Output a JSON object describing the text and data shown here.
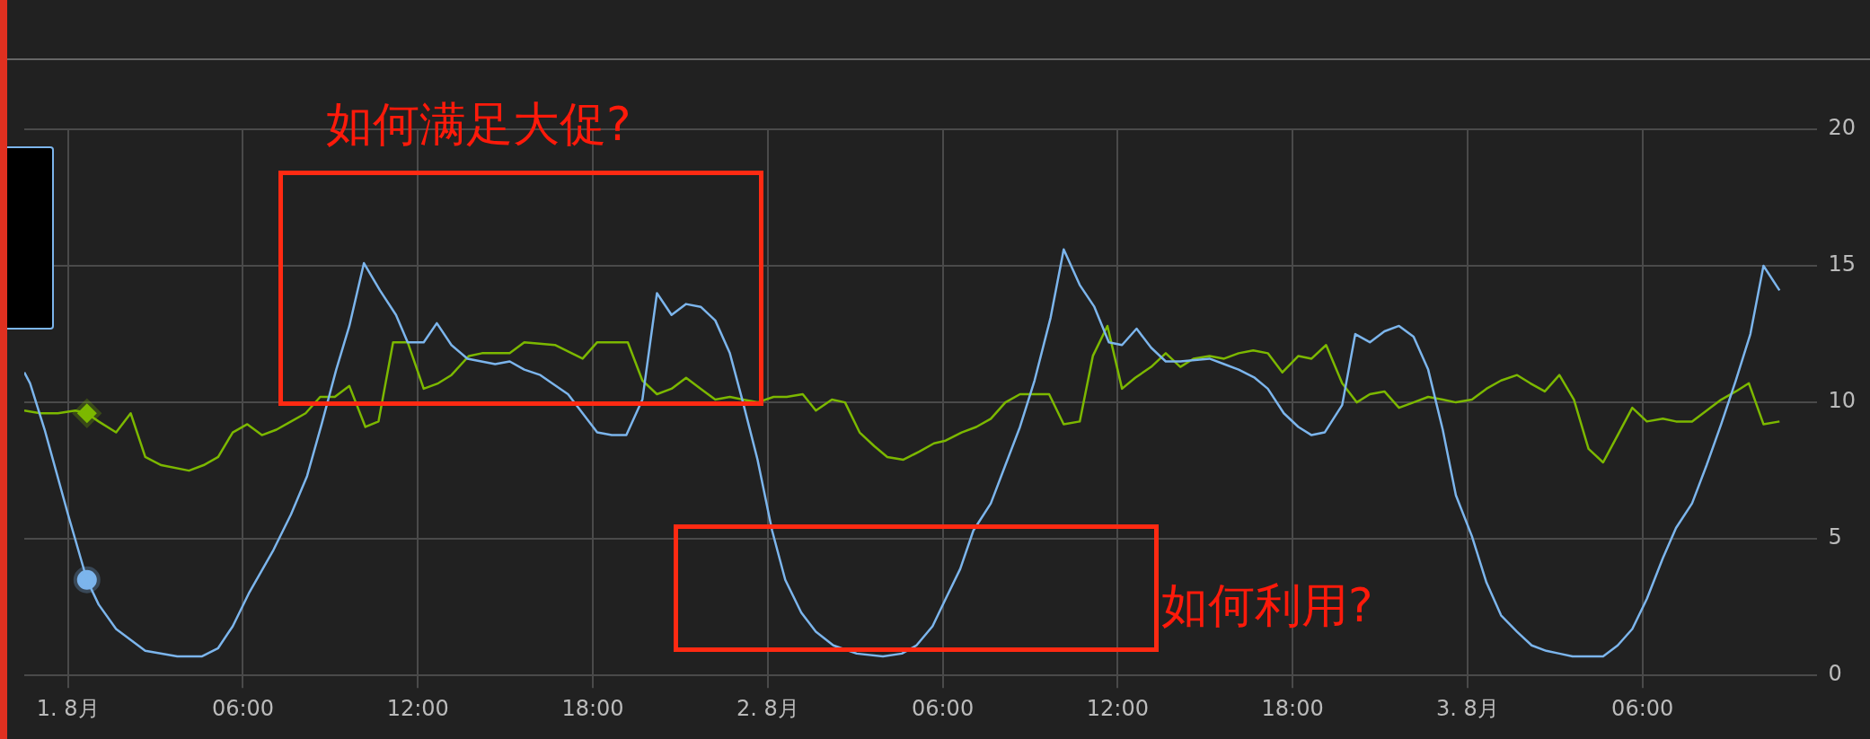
{
  "chart_data": {
    "type": "line",
    "annotations": [
      "如何满足大促?",
      "如何利用?"
    ],
    "xlim": [
      "--07-31T22:30",
      "--08-03T12:00"
    ],
    "xticks": [
      {
        "value": "--08-01",
        "label": "1. 8月"
      },
      {
        "value": "--08-01T06:00",
        "label": "06:00"
      },
      {
        "value": "--08-01T12:00",
        "label": "12:00"
      },
      {
        "value": "--08-01T18:00",
        "label": "18:00"
      },
      {
        "value": "--08-02",
        "label": "2. 8月"
      },
      {
        "value": "--08-02T06:00",
        "label": "06:00"
      },
      {
        "value": "--08-02T12:00",
        "label": "12:00"
      },
      {
        "value": "--08-02T18:00",
        "label": "18:00"
      },
      {
        "value": "--08-03",
        "label": "3. 8月"
      },
      {
        "value": "--08-03T06:00",
        "label": "06:00"
      }
    ],
    "ylim": [
      0,
      20
    ],
    "yticks": [
      0,
      5,
      10,
      15,
      20
    ],
    "grid": true,
    "legend": false,
    "marker": "none",
    "series": [
      {
        "color": "#7cb5ec",
        "x": [
          "--07-31T22:30",
          "--07-31T22:42",
          "--07-31T23:12",
          "--08-01T00:00",
          "--08-01T00:39",
          "--08-01T01:03",
          "--08-01T01:39",
          "--08-01T02:39",
          "--08-01T03:45",
          "--08-01T04:36",
          "--08-01T05:09",
          "--08-01T05:39",
          "--08-01T06:12",
          "--08-01T07:03",
          "--08-01T07:39",
          "--08-01T08:12",
          "--08-01T08:42",
          "--08-01T09:12",
          "--08-01T09:39",
          "--08-01T10:09",
          "--08-01T10:42",
          "--08-01T11:15",
          "--08-01T11:39",
          "--08-01T12:12",
          "--08-01T12:39",
          "--08-01T13:09",
          "--08-01T13:42",
          "--08-01T14:39",
          "--08-01T15:09",
          "--08-01T15:39",
          "--08-01T16:12",
          "--08-01T16:36",
          "--08-01T17:09",
          "--08-01T17:39",
          "--08-01T18:09",
          "--08-01T18:39",
          "--08-01T19:09",
          "--08-01T19:42",
          "--08-01T20:12",
          "--08-01T20:42",
          "--08-01T21:12",
          "--08-01T21:42",
          "--08-01T22:12",
          "--08-01T22:42",
          "--08-01T23:09",
          "--08-01T23:39",
          "--08-02T00:09",
          "--08-02T00:36",
          "--08-02T01:09",
          "--08-02T01:39",
          "--08-02T02:15",
          "--08-02T03:03",
          "--08-02T03:57",
          "--08-02T04:36",
          "--08-02T05:06",
          "--08-02T05:39",
          "--08-02T06:06",
          "--08-02T06:36",
          "--08-02T07:03",
          "--08-02T07:39",
          "--08-02T08:09",
          "--08-02T08:39",
          "--08-02T09:09",
          "--08-02T09:42",
          "--08-02T10:09",
          "--08-02T10:42",
          "--08-02T11:12",
          "--08-02T11:42",
          "--08-02T12:09",
          "--08-02T12:39",
          "--08-02T13:09",
          "--08-02T13:39",
          "--08-02T14:09",
          "--08-02T15:09",
          "--08-02T15:39",
          "--08-02T16:09",
          "--08-02T16:42",
          "--08-02T17:09",
          "--08-02T17:42",
          "--08-02T18:12",
          "--08-02T18:39",
          "--08-02T19:06",
          "--08-02T19:42",
          "--08-02T20:09",
          "--08-02T20:39",
          "--08-02T21:09",
          "--08-02T21:39",
          "--08-02T22:09",
          "--08-02T22:39",
          "--08-02T23:09",
          "--08-02T23:36",
          "--08-03T00:09",
          "--08-03T00:39",
          "--08-03T01:09",
          "--08-03T01:42",
          "--08-03T02:12",
          "--08-03T02:42",
          "--08-03T03:09",
          "--08-03T03:36",
          "--08-03T04:09",
          "--08-03T04:39",
          "--08-03T05:09",
          "--08-03T05:39",
          "--08-03T06:09",
          "--08-03T06:42",
          "--08-03T07:09",
          "--08-03T07:42",
          "--08-03T08:12",
          "--08-03T08:42",
          "--08-03T09:12",
          "--08-03T09:42",
          "--08-03T10:09",
          "--08-03T10:42"
        ],
        "values": [
          11.1,
          10.7,
          9.0,
          5.9,
          3.5,
          2.6,
          1.7,
          0.9,
          0.7,
          0.7,
          1.0,
          1.8,
          3.0,
          4.6,
          5.9,
          7.3,
          9.2,
          11.2,
          12.8,
          15.1,
          14.1,
          13.2,
          12.2,
          12.2,
          12.9,
          12.1,
          11.6,
          11.4,
          11.5,
          11.2,
          11.0,
          10.7,
          10.3,
          9.6,
          8.9,
          8.8,
          8.8,
          10.1,
          14.0,
          13.2,
          13.6,
          13.5,
          13.0,
          11.8,
          10.0,
          7.9,
          5.3,
          3.5,
          2.3,
          1.6,
          1.1,
          0.8,
          0.7,
          0.8,
          1.1,
          1.8,
          2.8,
          3.9,
          5.3,
          6.3,
          7.7,
          9.1,
          10.8,
          13.1,
          15.6,
          14.3,
          13.5,
          12.2,
          12.1,
          12.7,
          12.0,
          11.5,
          11.5,
          11.6,
          11.4,
          11.2,
          10.9,
          10.5,
          9.6,
          9.1,
          8.8,
          8.9,
          9.9,
          12.5,
          12.2,
          12.6,
          12.8,
          12.4,
          11.2,
          9.0,
          6.6,
          5.1,
          3.4,
          2.2,
          1.6,
          1.1,
          0.9,
          0.8,
          0.7,
          0.7,
          0.7,
          1.1,
          1.7,
          2.8,
          4.3,
          5.4,
          6.3,
          7.7,
          9.2,
          10.8,
          12.5,
          15.0,
          14.1
        ]
      },
      {
        "color": "#7cb800",
        "x": [
          "--07-31T22:30",
          "--07-31T23:03",
          "--07-31T23:39",
          "--08-01T00:15",
          "--08-01T00:39",
          "--08-01T01:03",
          "--08-01T01:39",
          "--08-01T02:09",
          "--08-01T02:39",
          "--08-01T03:12",
          "--08-01T04:09",
          "--08-01T04:39",
          "--08-01T05:09",
          "--08-01T05:39",
          "--08-01T06:09",
          "--08-01T06:39",
          "--08-01T07:09",
          "--08-01T07:39",
          "--08-01T08:09",
          "--08-01T08:39",
          "--08-01T09:09",
          "--08-01T09:39",
          "--08-01T10:12",
          "--08-01T10:39",
          "--08-01T11:09",
          "--08-01T11:39",
          "--08-01T12:12",
          "--08-01T12:42",
          "--08-01T13:09",
          "--08-01T13:45",
          "--08-01T14:12",
          "--08-01T15:09",
          "--08-01T15:39",
          "--08-01T16:42",
          "--08-01T17:39",
          "--08-01T18:09",
          "--08-01T18:39",
          "--08-01T19:12",
          "--08-01T19:42",
          "--08-01T20:12",
          "--08-01T20:42",
          "--08-01T21:12",
          "--08-01T21:42",
          "--08-01T22:12",
          "--08-01T22:42",
          "--08-01T23:09",
          "--08-01T23:39",
          "--08-02T00:12",
          "--08-02T00:39",
          "--08-02T01:12",
          "--08-02T01:39",
          "--08-02T02:12",
          "--08-02T02:39",
          "--08-02T03:09",
          "--08-02T03:39",
          "--08-02T04:06",
          "--08-02T04:39",
          "--08-02T05:12",
          "--08-02T05:42",
          "--08-02T06:06",
          "--08-02T06:39",
          "--08-02T07:09",
          "--08-02T07:39",
          "--08-02T08:09",
          "--08-02T08:39",
          "--08-02T09:09",
          "--08-02T09:39",
          "--08-02T10:09",
          "--08-02T10:42",
          "--08-02T11:09",
          "--08-02T11:39",
          "--08-02T12:09",
          "--08-02T12:36",
          "--08-02T13:09",
          "--08-02T13:39",
          "--08-02T14:09",
          "--08-02T14:36",
          "--08-02T15:09",
          "--08-02T15:39",
          "--08-02T16:09",
          "--08-02T16:39",
          "--08-02T17:09",
          "--08-02T17:39",
          "--08-02T18:12",
          "--08-02T18:39",
          "--08-02T19:09",
          "--08-02T19:42",
          "--08-02T20:12",
          "--08-02T20:39",
          "--08-02T21:09",
          "--08-02T21:39",
          "--08-02T22:09",
          "--08-02T22:39",
          "--08-02T23:09",
          "--08-02T23:36",
          "--08-03T00:09",
          "--08-03T00:39",
          "--08-03T01:09",
          "--08-03T01:42",
          "--08-03T02:09",
          "--08-03T02:39",
          "--08-03T03:09",
          "--08-03T03:39",
          "--08-03T04:09",
          "--08-03T04:39",
          "--08-03T05:09",
          "--08-03T05:39",
          "--08-03T06:09",
          "--08-03T06:42",
          "--08-03T07:09",
          "--08-03T07:42",
          "--08-03T08:12",
          "--08-03T08:42",
          "--08-03T09:12",
          "--08-03T09:39",
          "--08-03T10:09",
          "--08-03T10:42"
        ],
        "values": [
          9.7,
          9.6,
          9.6,
          9.7,
          9.6,
          9.3,
          8.9,
          9.6,
          8.0,
          7.7,
          7.5,
          7.7,
          8.0,
          8.9,
          9.2,
          8.8,
          9.0,
          9.3,
          9.6,
          10.2,
          10.2,
          10.6,
          9.1,
          9.3,
          12.2,
          12.2,
          10.5,
          10.7,
          11.0,
          11.7,
          11.8,
          11.8,
          12.2,
          12.1,
          11.6,
          12.2,
          12.2,
          12.2,
          10.8,
          10.3,
          10.5,
          10.9,
          10.5,
          10.1,
          10.2,
          10.1,
          10.0,
          10.2,
          10.2,
          10.3,
          9.7,
          10.1,
          10.0,
          8.9,
          8.4,
          8.0,
          7.9,
          8.2,
          8.5,
          8.6,
          8.9,
          9.1,
          9.4,
          10.0,
          10.3,
          10.3,
          10.3,
          9.2,
          9.3,
          11.7,
          12.8,
          10.5,
          10.9,
          11.3,
          11.8,
          11.3,
          11.6,
          11.7,
          11.6,
          11.8,
          11.9,
          11.8,
          11.1,
          11.7,
          11.6,
          12.1,
          10.7,
          10.0,
          10.3,
          10.4,
          9.8,
          10.0,
          10.2,
          10.1,
          10.0,
          10.1,
          10.5,
          10.8,
          11.0,
          10.7,
          10.4,
          11.0,
          10.1,
          8.3,
          7.8,
          8.8,
          9.8,
          9.3,
          9.4,
          9.3,
          9.3,
          9.7,
          10.1,
          10.4,
          10.7,
          9.2,
          9.3
        ]
      },
      {
        "type": "scatter",
        "color": "#7cb5ec",
        "marker": "circle",
        "x": [
          "--08-01T00:39"
        ],
        "values": [
          3.5
        ]
      },
      {
        "type": "scatter",
        "color": "#7cb800",
        "marker": "diamond",
        "x": [
          "--08-01T00:39"
        ],
        "values": [
          9.6
        ]
      }
    ]
  }
}
